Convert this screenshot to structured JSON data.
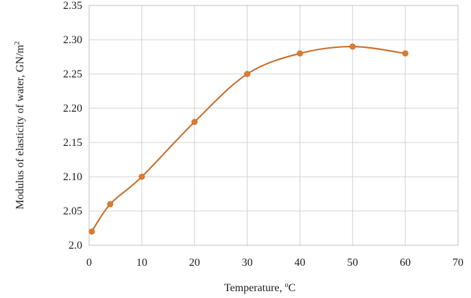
{
  "chart_data": {
    "type": "line",
    "title": "",
    "xlabel": "Temperature, ",
    "xlabel_sup": "o",
    "xlabel_suffix": "C",
    "ylabel": "Modulus of elasticity of water, GN/m",
    "ylabel_sup": "2",
    "xlim": [
      0,
      70
    ],
    "ylim": [
      2.0,
      2.35
    ],
    "xticks": [
      "0",
      "10",
      "20",
      "30",
      "40",
      "50",
      "60",
      "70"
    ],
    "yticks": [
      "2.0",
      "2.05",
      "2.10",
      "2.15",
      "2.20",
      "2.25",
      "2.30",
      "2.35"
    ],
    "grid": true,
    "smooth": true,
    "series": [
      {
        "color": "#c8702c",
        "marker_color": "#e07b2a",
        "x": [
          0.5,
          4,
          10,
          20,
          30,
          40,
          50,
          60
        ],
        "y": [
          2.02,
          2.06,
          2.1,
          2.18,
          2.25,
          2.28,
          2.29,
          2.28
        ]
      }
    ]
  }
}
